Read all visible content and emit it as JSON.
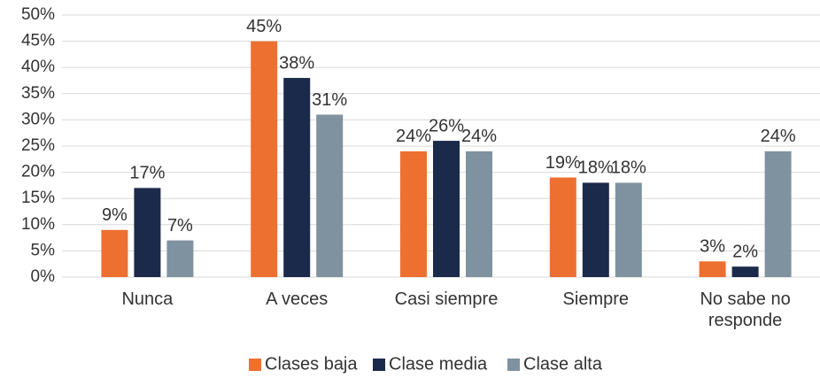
{
  "chart_data": {
    "type": "bar",
    "categories": [
      "Nunca",
      "A veces",
      "Casi siempre",
      "Siempre",
      "No sabe no responde"
    ],
    "series": [
      {
        "name": "Clases baja",
        "color": "#ed7031",
        "values": [
          9,
          45,
          24,
          19,
          3
        ],
        "value_labels": [
          "9%",
          "45%",
          "24%",
          "19%",
          "3%"
        ]
      },
      {
        "name": "Clase media",
        "color": "#1b2a4a",
        "values": [
          17,
          38,
          26,
          18,
          2
        ],
        "value_labels": [
          "17%",
          "38%",
          "26%",
          "18%",
          "2%"
        ]
      },
      {
        "name": "Clase alta",
        "color": "#7f929f",
        "values": [
          7,
          31,
          24,
          18,
          24
        ],
        "value_labels": [
          "7%",
          "31%",
          "24%",
          "18%",
          "24%"
        ]
      }
    ],
    "ylim": [
      0,
      50
    ],
    "yticks": [
      {
        "value": 0,
        "label": "0%"
      },
      {
        "value": 5,
        "label": "5%"
      },
      {
        "value": 10,
        "label": "10%"
      },
      {
        "value": 15,
        "label": "15%"
      },
      {
        "value": 20,
        "label": "20%"
      },
      {
        "value": 25,
        "label": "25%"
      },
      {
        "value": 30,
        "label": "30%"
      },
      {
        "value": 35,
        "label": "35%"
      },
      {
        "value": 40,
        "label": "40%"
      },
      {
        "value": 45,
        "label": "45%"
      },
      {
        "value": 50,
        "label": "50%"
      }
    ],
    "grid": true,
    "legend": "bottom"
  }
}
